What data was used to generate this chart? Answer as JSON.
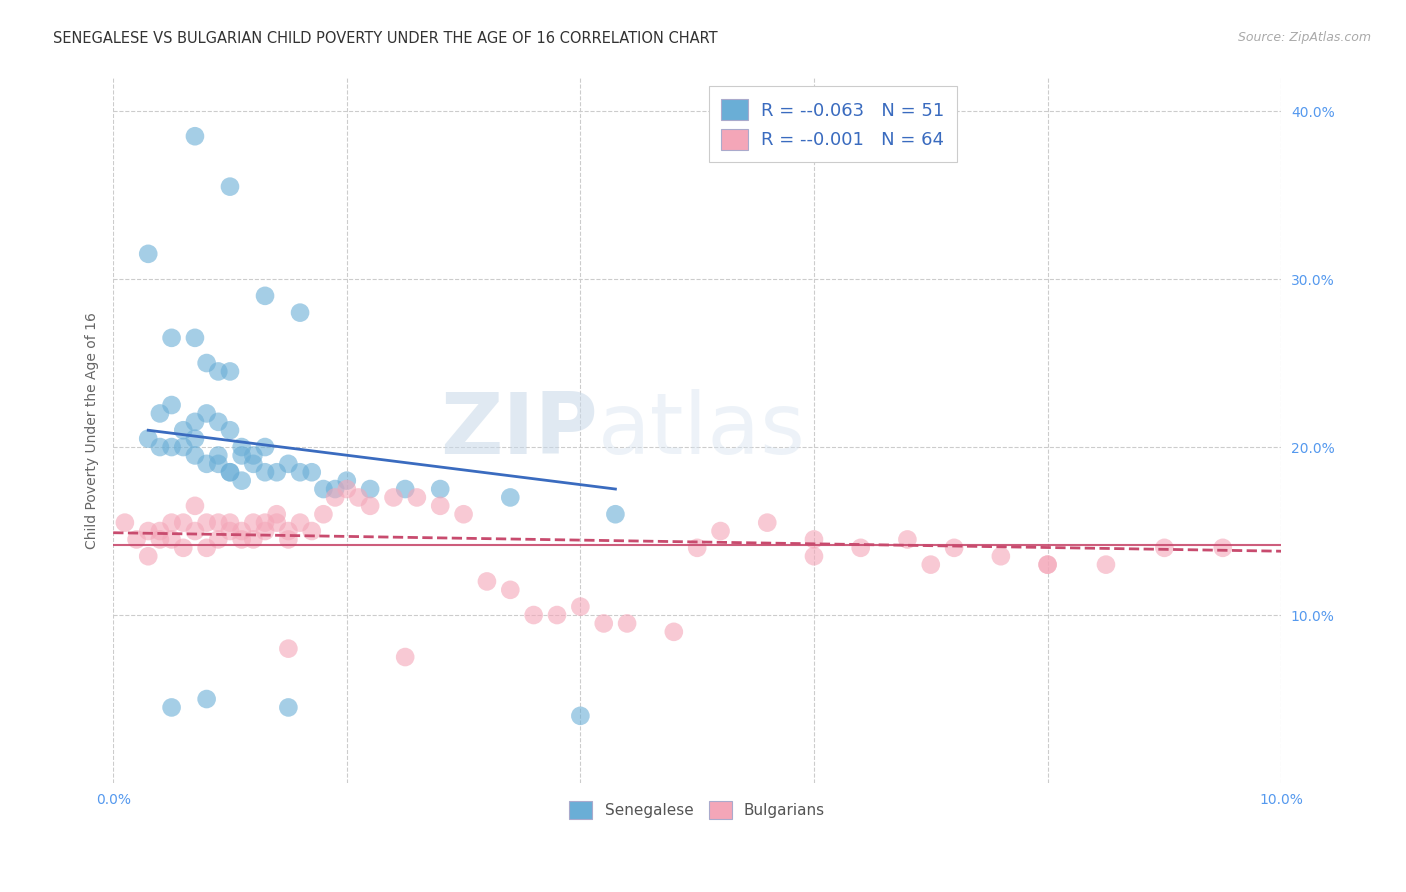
{
  "title": "SENEGALESE VS BULGARIAN CHILD POVERTY UNDER THE AGE OF 16 CORRELATION CHART",
  "source": "Source: ZipAtlas.com",
  "ylabel": "Child Poverty Under the Age of 16",
  "xlim": [
    0.0,
    0.1
  ],
  "ylim": [
    0.0,
    0.42
  ],
  "x_ticks": [
    0.0,
    0.02,
    0.04,
    0.06,
    0.08,
    0.1
  ],
  "x_tick_labels": [
    "0.0%",
    "",
    "",
    "",
    "",
    "10.0%"
  ],
  "y_ticks_right": [
    0.1,
    0.2,
    0.3,
    0.4
  ],
  "color_senegalese": "#6aaed6",
  "color_bulgarians": "#f4a6b8",
  "color_line_senegalese": "#3a6bbf",
  "color_line_bulgarians": "#c84b6e",
  "background_color": "#ffffff",
  "grid_color": "#cccccc",
  "watermark_zip": "ZIP",
  "watermark_atlas": "atlas",
  "legend_r1": "-0.063",
  "legend_n1": "51",
  "legend_r2": "-0.001",
  "legend_n2": "64",
  "senegalese_x": [
    0.007,
    0.01,
    0.013,
    0.016,
    0.003,
    0.005,
    0.007,
    0.008,
    0.009,
    0.01,
    0.004,
    0.005,
    0.006,
    0.007,
    0.008,
    0.009,
    0.01,
    0.011,
    0.012,
    0.013,
    0.003,
    0.004,
    0.005,
    0.006,
    0.007,
    0.007,
    0.008,
    0.009,
    0.009,
    0.01,
    0.01,
    0.011,
    0.011,
    0.012,
    0.013,
    0.014,
    0.015,
    0.016,
    0.017,
    0.018,
    0.019,
    0.02,
    0.022,
    0.025,
    0.028,
    0.034,
    0.043,
    0.005,
    0.008,
    0.015,
    0.04
  ],
  "senegalese_y": [
    0.385,
    0.355,
    0.29,
    0.28,
    0.315,
    0.265,
    0.265,
    0.25,
    0.245,
    0.245,
    0.22,
    0.225,
    0.21,
    0.215,
    0.22,
    0.215,
    0.21,
    0.2,
    0.195,
    0.2,
    0.205,
    0.2,
    0.2,
    0.2,
    0.195,
    0.205,
    0.19,
    0.195,
    0.19,
    0.185,
    0.185,
    0.195,
    0.18,
    0.19,
    0.185,
    0.185,
    0.19,
    0.185,
    0.185,
    0.175,
    0.175,
    0.18,
    0.175,
    0.175,
    0.175,
    0.17,
    0.16,
    0.045,
    0.05,
    0.045,
    0.04
  ],
  "bulgarians_x": [
    0.001,
    0.002,
    0.003,
    0.003,
    0.004,
    0.004,
    0.005,
    0.005,
    0.006,
    0.006,
    0.007,
    0.007,
    0.008,
    0.008,
    0.009,
    0.009,
    0.01,
    0.01,
    0.011,
    0.011,
    0.012,
    0.012,
    0.013,
    0.013,
    0.014,
    0.014,
    0.015,
    0.015,
    0.016,
    0.017,
    0.018,
    0.019,
    0.02,
    0.021,
    0.022,
    0.024,
    0.026,
    0.028,
    0.03,
    0.032,
    0.034,
    0.036,
    0.038,
    0.04,
    0.042,
    0.044,
    0.048,
    0.052,
    0.056,
    0.06,
    0.064,
    0.068,
    0.072,
    0.076,
    0.08,
    0.085,
    0.09,
    0.095,
    0.05,
    0.06,
    0.07,
    0.08,
    0.015,
    0.025
  ],
  "bulgarians_y": [
    0.155,
    0.145,
    0.15,
    0.135,
    0.145,
    0.15,
    0.145,
    0.155,
    0.14,
    0.155,
    0.165,
    0.15,
    0.155,
    0.14,
    0.155,
    0.145,
    0.15,
    0.155,
    0.145,
    0.15,
    0.155,
    0.145,
    0.155,
    0.15,
    0.16,
    0.155,
    0.15,
    0.145,
    0.155,
    0.15,
    0.16,
    0.17,
    0.175,
    0.17,
    0.165,
    0.17,
    0.17,
    0.165,
    0.16,
    0.12,
    0.115,
    0.1,
    0.1,
    0.105,
    0.095,
    0.095,
    0.09,
    0.15,
    0.155,
    0.145,
    0.14,
    0.145,
    0.14,
    0.135,
    0.13,
    0.13,
    0.14,
    0.14,
    0.14,
    0.135,
    0.13,
    0.13,
    0.08,
    0.075
  ],
  "senegalese_line_x": [
    0.003,
    0.043
  ],
  "senegalese_line_y": [
    0.21,
    0.175
  ],
  "bulgarians_line_x": [
    0.0,
    0.1
  ],
  "bulgarians_line_y": [
    0.149,
    0.138
  ]
}
